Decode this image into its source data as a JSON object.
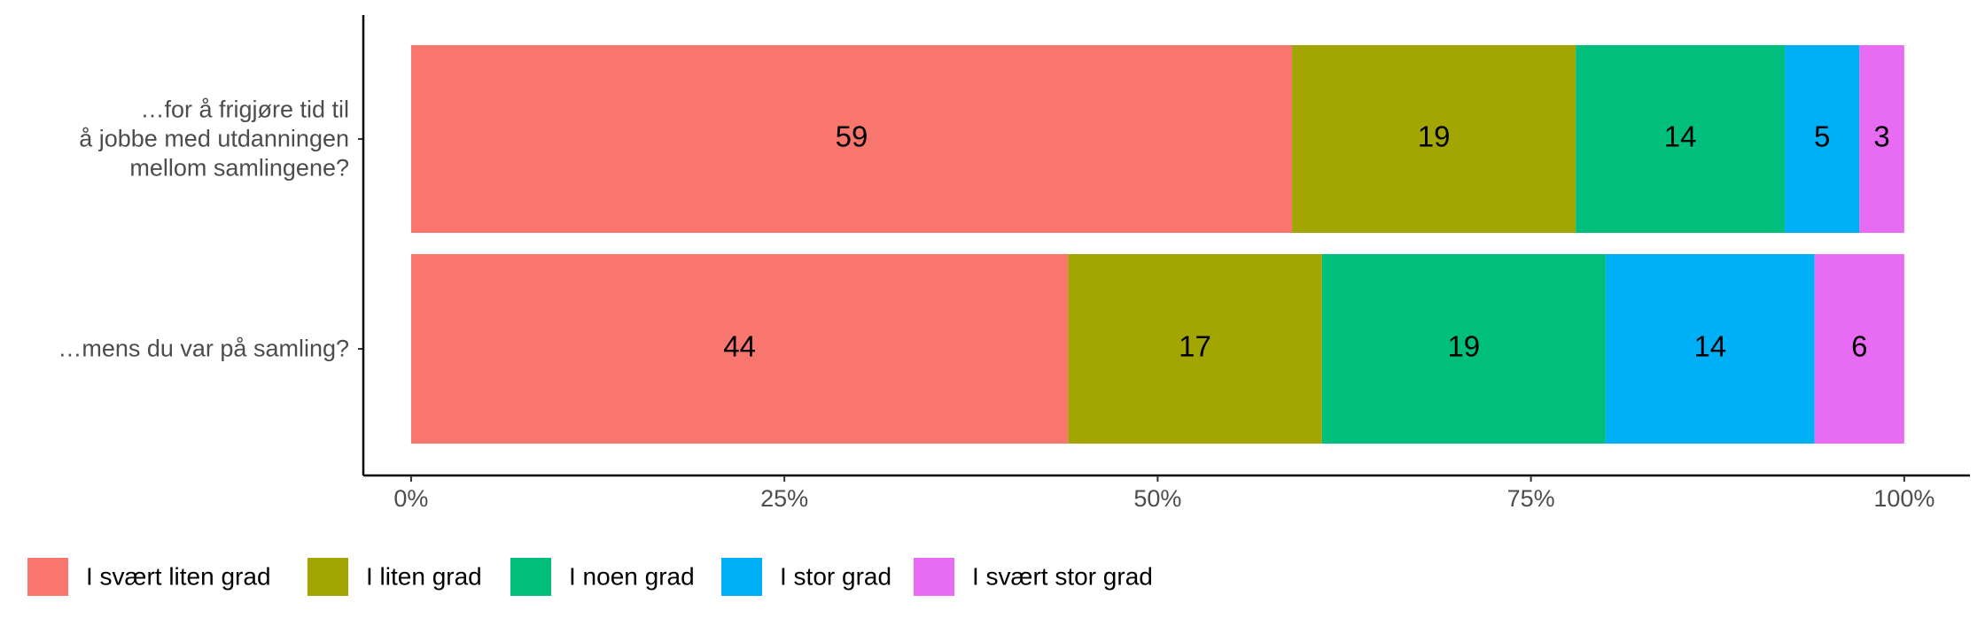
{
  "chart_data": {
    "type": "stacked_bar_horizontal",
    "categories": [
      "…for å frigjøre tid til\nå jobbe med utdanningen\nmellom samlingene?",
      "…mens du var på samling?"
    ],
    "series": [
      {
        "name": "I svært liten grad",
        "color": "#F8766D",
        "values": [
          59,
          44
        ]
      },
      {
        "name": "I liten grad",
        "color": "#A3A500",
        "values": [
          19,
          17
        ]
      },
      {
        "name": "I noen grad",
        "color": "#00BF7D",
        "values": [
          14,
          19
        ]
      },
      {
        "name": "I stor grad",
        "color": "#00B0F6",
        "values": [
          5,
          14
        ]
      },
      {
        "name": "I svært stor grad",
        "color": "#E76BF3",
        "values": [
          3,
          6
        ]
      }
    ],
    "xlim": [
      -3.2,
      104.4
    ],
    "xticks": [
      {
        "value": 0,
        "label": "0%"
      },
      {
        "value": 25,
        "label": "25%"
      },
      {
        "value": 50,
        "label": "50%"
      },
      {
        "value": 75,
        "label": "75%"
      },
      {
        "value": 100,
        "label": "100%"
      }
    ],
    "legend": "bottom-left"
  }
}
